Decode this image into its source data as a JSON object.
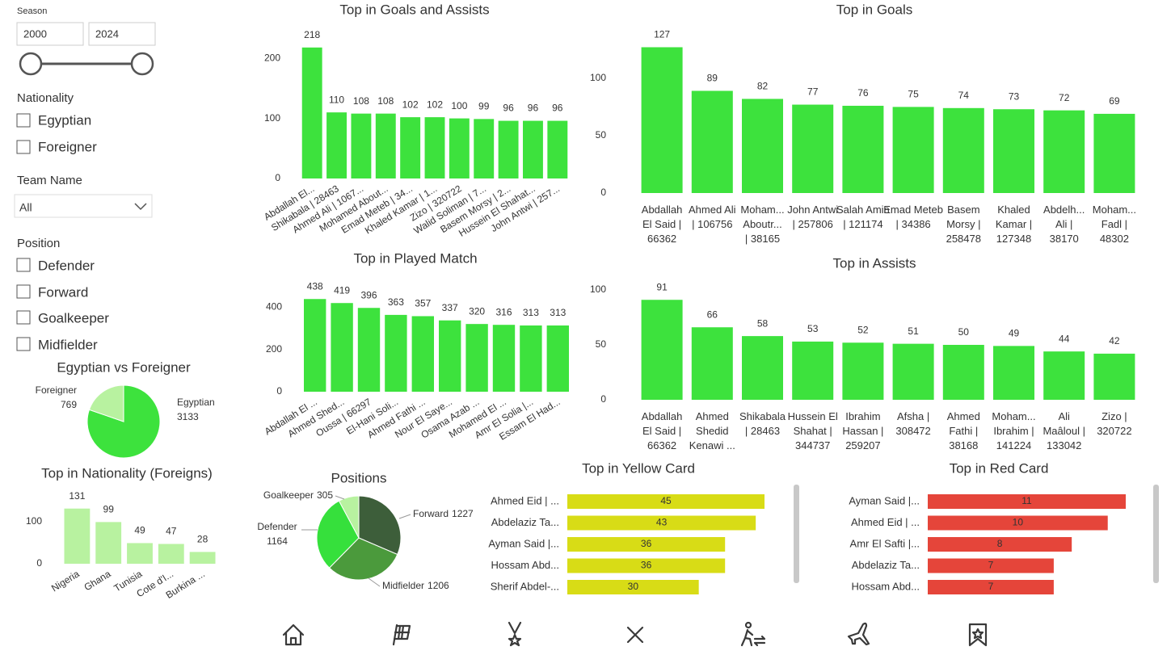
{
  "filters": {
    "season": {
      "label": "Season",
      "start": 2000,
      "end": 2024
    },
    "nationality": {
      "label": "Nationality",
      "options": [
        "Egyptian",
        "Foreigner"
      ]
    },
    "team_name": {
      "label": "Team Name",
      "selected": "All"
    },
    "position": {
      "label": "Position",
      "options": [
        "Defender",
        "Forward",
        "Goalkeeper",
        "Midfielder"
      ]
    }
  },
  "chart_data": [
    {
      "type": "bar",
      "title": "Top in Goals and Assists",
      "categories": [
        "Abdallah El...",
        "Shikabala | 28463",
        "Ahmed Ali | 1067...",
        "Mohamed About...",
        "Emad Meteb | 34...",
        "Khaled Kamar | 1...",
        "Zizo | 320722",
        "Walid Soliman | 7...",
        "Basem Morsy | 2...",
        "Hussein El Shahat...",
        "John Antwi | 257..."
      ],
      "values": [
        218,
        110,
        108,
        108,
        102,
        102,
        100,
        99,
        96,
        96,
        96
      ],
      "color": "#3de23d",
      "ylim": [
        0,
        250
      ],
      "yticks": [
        0,
        100,
        200
      ]
    },
    {
      "type": "bar",
      "title": "Top in Goals",
      "categories": [
        "Abdallah El Said | 66362",
        "Ahmed Ali | 106756",
        "Moham... Aboutr... | 38165",
        "John Antwi | 257806",
        "Salah Amin | 121174",
        "Emad Meteb | 34386",
        "Basem Morsy | 258478",
        "Khaled Kamar | 127348",
        "Abdelh... Ali | 38170",
        "Moham... Fadl | 48302"
      ],
      "values": [
        127,
        89,
        82,
        77,
        76,
        75,
        74,
        73,
        72,
        69
      ],
      "color": "#3de23d",
      "ylim": [
        0,
        140
      ],
      "yticks": [
        0,
        50,
        100
      ]
    },
    {
      "type": "bar",
      "title": "Top in Played Match",
      "categories": [
        "Abdallah El ...",
        "Ahmed Shed...",
        "Oussa | 66297",
        "El-Hani Soli...",
        "Ahmed Fathi ...",
        "Nour El Saye...",
        "Osama Azab ...",
        "Mohamed El ...",
        "Amr El Solia |...",
        "Essam El Had..."
      ],
      "values": [
        438,
        419,
        396,
        363,
        357,
        337,
        320,
        316,
        313,
        313
      ],
      "color": "#3de23d",
      "ylim": [
        0,
        500
      ],
      "yticks": [
        0,
        200,
        400
      ]
    },
    {
      "type": "bar",
      "title": "Top in Assists",
      "categories": [
        "Abdallah El Said | 66362",
        "Ahmed Shedid Kenawi ...",
        "Shikabala | 28463",
        "Hussein El Shahat | 344737",
        "Ibrahim Hassan | 259207",
        "Afsha | 308472",
        "Ahmed Fathi | 38168",
        "Moham... Ibrahim | 141224",
        "Ali Maâloul | 133042",
        "Zizo | 320722"
      ],
      "values": [
        91,
        66,
        58,
        53,
        52,
        51,
        50,
        49,
        44,
        42
      ],
      "color": "#3de23d",
      "ylim": [
        0,
        100
      ],
      "yticks": [
        0,
        50,
        100
      ]
    },
    {
      "type": "bar",
      "title": "Top in Nationality (Foreigns)",
      "categories": [
        "Nigeria",
        "Ghana",
        "Tunisia",
        "Cote d'I...",
        "Burkina ..."
      ],
      "values": [
        131,
        99,
        49,
        47,
        28
      ],
      "color": "#b8f2a0",
      "ylim": [
        0,
        140
      ],
      "yticks": [
        0,
        100
      ]
    },
    {
      "type": "pie",
      "title": "Egyptian vs Foreigner",
      "categories": [
        "Egyptian",
        "Foreigner"
      ],
      "values": [
        3133,
        769
      ],
      "colors": [
        "#3de23d",
        "#b8f2a0"
      ]
    },
    {
      "type": "pie",
      "title": "Positions",
      "categories": [
        "Forward",
        "Midfielder",
        "Defender",
        "Goalkeeper"
      ],
      "values": [
        1227,
        1206,
        1164,
        305
      ],
      "colors": [
        "#3d5e3a",
        "#4b9a3c",
        "#36e03c",
        "#b8f2a0"
      ]
    },
    {
      "type": "barh",
      "title": "Top in Yellow Card",
      "categories": [
        "Ahmed Eid | ...",
        "Abdelaziz Ta...",
        "Ayman Said |...",
        "Hossam Abd...",
        "Sherif Abdel-..."
      ],
      "values": [
        45,
        43,
        36,
        36,
        30
      ],
      "color": "#d8dc16"
    },
    {
      "type": "barh",
      "title": "Top in Red Card",
      "categories": [
        "Ayman Said |...",
        "Ahmed Eid | ...",
        "Amr El Safti |...",
        "Abdelaziz Ta...",
        "Hossam Abd..."
      ],
      "values": [
        11,
        10,
        8,
        7,
        7
      ],
      "color": "#e5453a"
    }
  ]
}
